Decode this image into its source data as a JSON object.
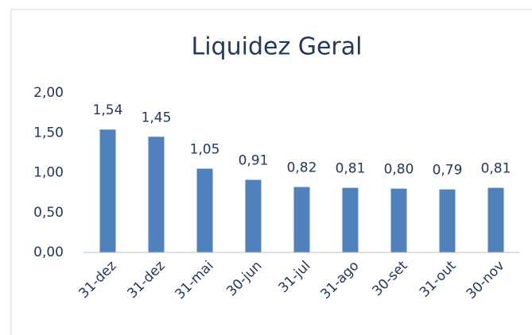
{
  "chart_data": {
    "type": "bar",
    "title": "Liquidez Geral",
    "categories": [
      "31-dez",
      "31-dez",
      "31-mai",
      "30-jun",
      "31-jul",
      "31-ago",
      "30-set",
      "31-out",
      "30-nov"
    ],
    "values": [
      1.54,
      1.45,
      1.05,
      0.91,
      0.82,
      0.81,
      0.8,
      0.79,
      0.81
    ],
    "value_labels": [
      "1,54",
      "1,45",
      "1,05",
      "0,91",
      "0,82",
      "0,81",
      "0,80",
      "0,79",
      "0,81"
    ],
    "color": "#4f81bd",
    "ylim": [
      0,
      2
    ],
    "yticks": [
      {
        "value": 0,
        "label": "0,00"
      },
      {
        "value": 0.5,
        "label": "0,50"
      },
      {
        "value": 1,
        "label": "1,00"
      },
      {
        "value": 1.5,
        "label": "1,50"
      },
      {
        "value": 2,
        "label": "2,00"
      }
    ],
    "grid": false
  }
}
